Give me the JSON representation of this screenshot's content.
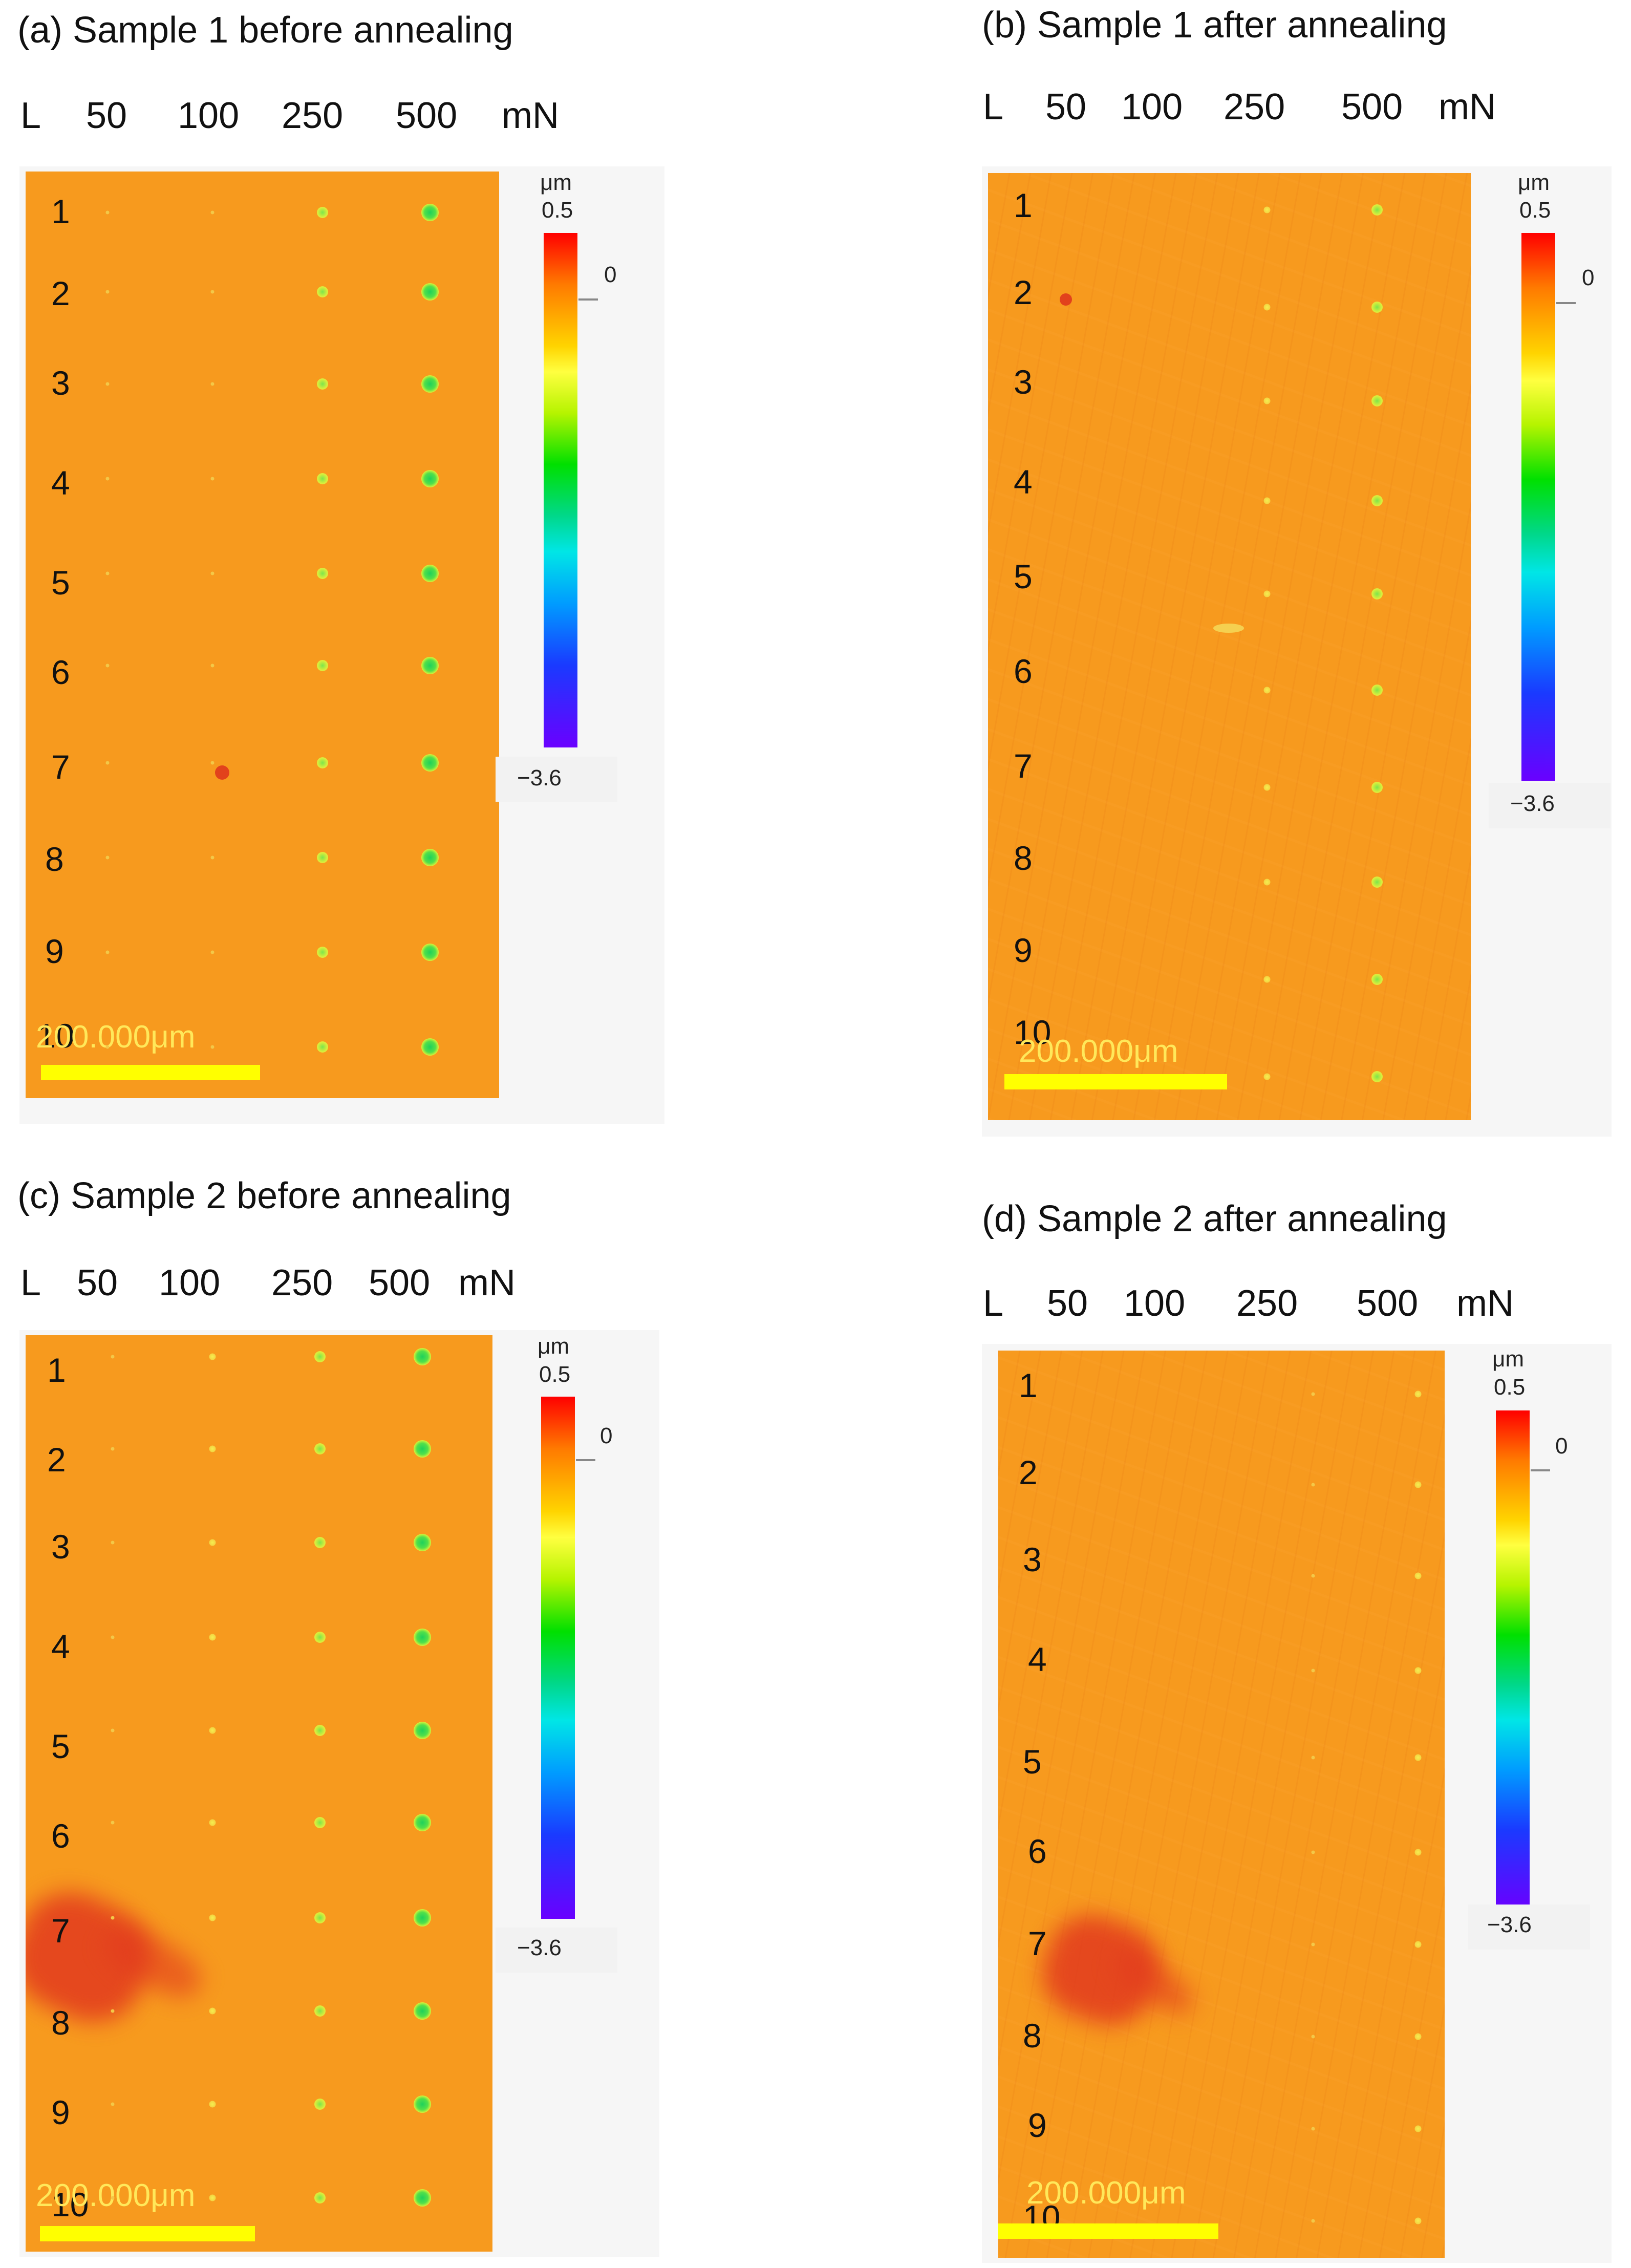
{
  "colors": {
    "surface": "#f79a1e",
    "indent_large": "#1fd15b",
    "scale_bar": "#ffff00",
    "stain": "#e23a1e"
  },
  "panels": [
    {
      "id": "a",
      "title": "(a) Sample 1 before annealing",
      "loads": [
        "L",
        "50",
        "100",
        "250",
        "500",
        "mN"
      ],
      "rows": [
        "1",
        "2",
        "3",
        "4",
        "5",
        "6",
        "7",
        "8",
        "9",
        "10"
      ],
      "scale_label": "200.000μm",
      "colorbar": {
        "unit": "μm",
        "max": "0.5",
        "zero": "0",
        "min": "−3.6"
      }
    },
    {
      "id": "b",
      "title": "(b) Sample 1 after annealing",
      "loads": [
        "L",
        "50",
        "100",
        "250",
        "500",
        "mN"
      ],
      "rows": [
        "1",
        "2",
        "3",
        "4",
        "5",
        "6",
        "7",
        "8",
        "9",
        "10"
      ],
      "scale_label": "200.000μm",
      "colorbar": {
        "unit": "μm",
        "max": "0.5",
        "zero": "0",
        "min": "−3.6"
      }
    },
    {
      "id": "c",
      "title": "(c) Sample 2 before annealing",
      "loads": [
        "L",
        "50",
        "100",
        "250",
        "500",
        "mN"
      ],
      "rows": [
        "1",
        "2",
        "3",
        "4",
        "5",
        "6",
        "7",
        "8",
        "9",
        "10"
      ],
      "scale_label": "200.000μm",
      "colorbar": {
        "unit": "μm",
        "max": "0.5",
        "zero": "0",
        "min": "−3.6"
      }
    },
    {
      "id": "d",
      "title": "(d) Sample 2 after annealing",
      "loads": [
        "L",
        "50",
        "100",
        "250",
        "500",
        "mN"
      ],
      "rows": [
        "1",
        "2",
        "3",
        "4",
        "5",
        "6",
        "7",
        "8",
        "9",
        "10"
      ],
      "scale_label": "200.000μm",
      "colorbar": {
        "unit": "μm",
        "max": "0.5",
        "zero": "0",
        "min": "−3.6"
      }
    }
  ]
}
